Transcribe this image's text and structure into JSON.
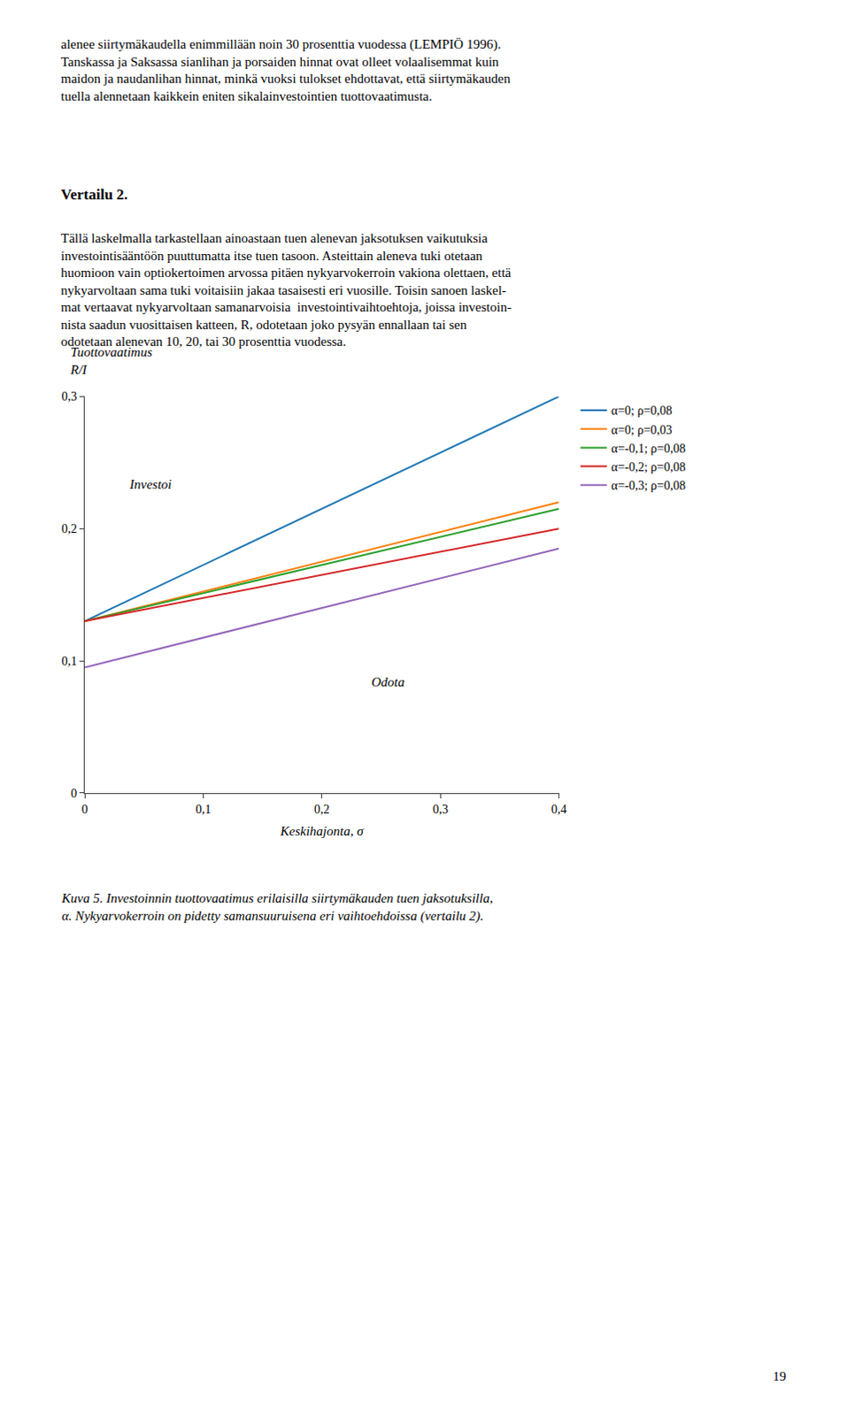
{
  "chart_data": {
    "type": "line",
    "xlabel": "Keskihajonta, σ",
    "ylabel": "Tuottovaatimus\nR/I",
    "x": [
      0.0,
      0.4
    ],
    "series": [
      {
        "name": "α=0; ρ=0,08",
        "values": [
          0.13,
          0.3
        ]
      },
      {
        "name": "α=0; ρ=0,03",
        "values": [
          0.13,
          0.22
        ]
      },
      {
        "name": "α=-0,1; ρ=0,08",
        "values": [
          0.13,
          0.215
        ]
      },
      {
        "name": "α=-0,2; ρ=0,08",
        "values": [
          0.13,
          0.2
        ]
      },
      {
        "name": "α=-0,3; ρ=0,08",
        "values": [
          0.095,
          0.185
        ]
      }
    ],
    "xlim": [
      0,
      0.4
    ],
    "ylim": [
      0,
      0.3
    ],
    "xticks": [
      0,
      {
        "value": 0.1,
        "label": "0,1"
      },
      {
        "value": 0.2,
        "label": "0,2"
      },
      {
        "value": 0.3,
        "label": "0,3"
      },
      {
        "value": 0.4,
        "label": "0,4"
      }
    ],
    "yticks": [
      0,
      {
        "value": 0.1,
        "label": "0,1"
      },
      {
        "value": 0.2,
        "label": "0,2"
      },
      {
        "value": 0.3,
        "label": "0,3"
      }
    ],
    "grid": false,
    "legend": "right",
    "annotations": [
      "alenee siirtymäkaudella enimmillään noin 30 prosenttia vuodessa (LEMPIÖ 1996).\nTanskassa ja Saksassa sianlihan ja porsaiden hinnat ovat olleet volaalisemmat kuin\nmaidon ja naudanlihan hinnat, minkä vuoksi tulokset ehdottavat, että siirtymäkauden\ntuella alennetaan kaikkein eniten sikalainvestointien tuottovaatimusta.",
      "Vertailu 2.",
      "Tällä laskelmalla tarkastellaan ainoastaan tuen alenevan jaksotuksen vaikutuksia\ninvestointisääntöön puuttumatta itse tuen tasoon. Asteittain aleneva tuki otetaan\nhuomioon vain optiokertoimen arvossa pitäen nykyarvokerroin vakiona olettaen, että\nnykyarvoltaan sama tuki voitaisiin jakaa tasaisesti eri vuosille. Toisin sanoen laskel-\nmat vertaavat nykyarvoltaan samanarvoisia  investointivaihtoehtoja, joissa investoin-\nnista saadun vuosittaisen katteen, R, odotetaan joko pysyän ennallaan tai sen\nodotetaan alenevan 10, 20, tai 30 prosenttia vuodessa.",
      "Investoi",
      "Odota",
      "Kuva 5. Investoinnin tuottovaatimus erilaisilla siirtymäkauden tuen jaksotuksilla,\nα. Nykyarvokerroin on pidetty samansuuruisena eri vaihtoehdoissa (vertailu 2).",
      "19"
    ]
  }
}
